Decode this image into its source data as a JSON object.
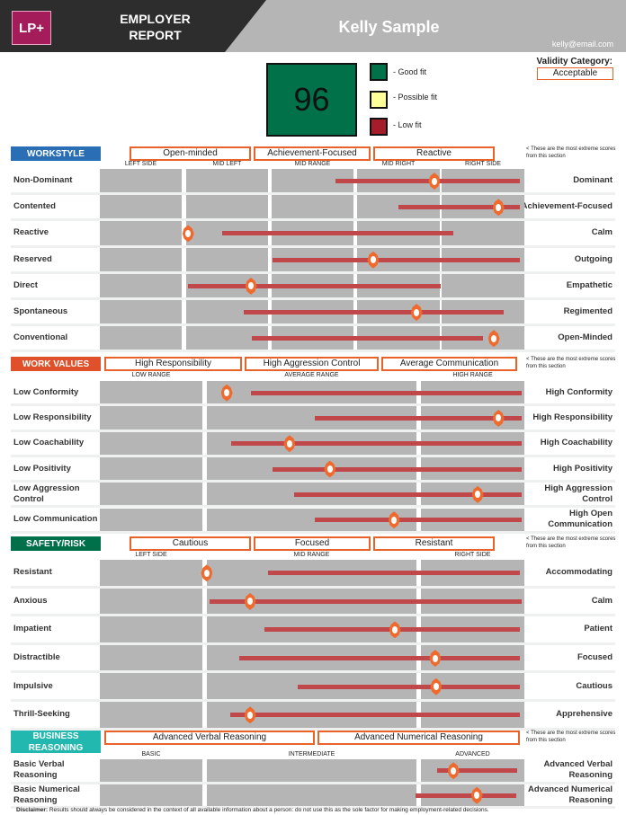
{
  "header": {
    "logo": "LP+",
    "title_line1": "EMPLOYER",
    "title_line2": "REPORT",
    "name": "Kelly Sample",
    "email": "kelly@email.com"
  },
  "score": {
    "value": "96",
    "color": "#007148"
  },
  "legend": [
    {
      "label": "- Good fit",
      "color": "#007148"
    },
    {
      "label": "- Possible fit",
      "color": "#ffff99"
    },
    {
      "label": "- Low fit",
      "color": "#a51c2a"
    }
  ],
  "validity": {
    "label": "Validity Category:",
    "value": "Acceptable"
  },
  "note": "< These are the most extreme scores from this section",
  "sections": [
    {
      "id": "workstyle",
      "title": "WORKSTYLE",
      "color": "#2a6fb6",
      "extremes": [
        "Open-minded",
        "Achievement-Focused",
        "Reactive"
      ],
      "columns": [
        "LEFT SIDE",
        "MID LEFT",
        "MID RANGE",
        "MID RIGHT",
        "RIGHT SIDE"
      ],
      "rows": [
        {
          "left": "Non-Dominant",
          "right": "Dominant",
          "range_pct": [
            55.5,
            98.9
          ],
          "score_pct": 78.8
        },
        {
          "left": "Contented",
          "right": "Achievement-Focused",
          "range_pct": [
            70.3,
            98.9
          ],
          "score_pct": 93.9
        },
        {
          "left": "Reactive",
          "right": "Calm",
          "range_pct": [
            28.8,
            83.3
          ],
          "score_pct": 20.8
        },
        {
          "left": "Reserved",
          "right": "Outgoing",
          "range_pct": [
            40.7,
            98.9
          ],
          "score_pct": 64.4
        },
        {
          "left": "Direct",
          "right": "Empathetic",
          "range_pct": [
            20.8,
            80.3
          ],
          "score_pct": 35.6
        },
        {
          "left": "Spontaneous",
          "right": "Regimented",
          "range_pct": [
            33.9,
            95.1
          ],
          "score_pct": 74.6
        },
        {
          "left": "Conventional",
          "right": "Open-Minded",
          "range_pct": [
            35.8,
            90.3
          ],
          "score_pct": 92.8
        }
      ]
    },
    {
      "id": "workvalues",
      "title": "WORK VALUES",
      "color": "#e0502a",
      "extremes": [
        "High Responsibility",
        "High Aggression Control",
        "Average Communication"
      ],
      "columns": [
        "LOW RANGE",
        "AVERAGE RANGE",
        "HIGH RANGE"
      ],
      "rows": [
        {
          "left": "Low Conformity",
          "right": "High Conformity",
          "range_pct": [
            35.6,
            99.4
          ],
          "score_pct": 29.9
        },
        {
          "left": "Low Responsibility",
          "right": "High Responsibility",
          "range_pct": [
            50.6,
            99.4
          ],
          "score_pct": 93.9
        },
        {
          "left": "Low Coachability",
          "right": "High Coachability",
          "range_pct": [
            30.9,
            99.4
          ],
          "score_pct": 44.7
        },
        {
          "left": "Low Positivity",
          "right": "High Positivity",
          "range_pct": [
            40.7,
            99.4
          ],
          "score_pct": 54.2
        },
        {
          "left": "Low Aggression Control",
          "right": "High Aggression Control",
          "range_pct": [
            45.8,
            99.4
          ],
          "score_pct": 89.0
        },
        {
          "left": "Low Communication",
          "right": "High Open Communication",
          "range_pct": [
            50.6,
            99.4
          ],
          "score_pct": 69.3
        }
      ]
    },
    {
      "id": "safety",
      "title": "SAFETY/RISK",
      "color": "#00704a",
      "extremes": [
        "Cautious",
        "Focused",
        "Resistant"
      ],
      "columns": [
        "LEFT SIDE",
        "MID RANGE",
        "RIGHT SIDE"
      ],
      "rows": [
        {
          "left": "Resistant",
          "right": "Accommodating",
          "range_pct": [
            39.6,
            98.9
          ],
          "score_pct": 25.2
        },
        {
          "left": "Anxious",
          "right": "Calm",
          "range_pct": [
            25.8,
            99.4
          ],
          "score_pct": 35.4
        },
        {
          "left": "Impatient",
          "right": "Patient",
          "range_pct": [
            38.8,
            98.9
          ],
          "score_pct": 69.5
        },
        {
          "left": "Distractible",
          "right": "Focused",
          "range_pct": [
            32.8,
            98.9
          ],
          "score_pct": 79.0
        },
        {
          "left": "Impulsive",
          "right": "Cautious",
          "range_pct": [
            46.6,
            98.9
          ],
          "score_pct": 79.2
        },
        {
          "left": "Thrill-Seeking",
          "right": "Apprehensive",
          "range_pct": [
            30.7,
            98.9
          ],
          "score_pct": 35.4
        }
      ]
    },
    {
      "id": "business",
      "title": "BUSINESS REASONING",
      "color": "#22b8b0",
      "extremes": [
        "Advanced Verbal Reasoning",
        "Advanced Numerical Reasoning"
      ],
      "columns": [
        "BASIC",
        "INTERMEDIATE",
        "ADVANCED"
      ],
      "rows": [
        {
          "left": "Basic Verbal Reasoning",
          "right": "Advanced Verbal Reasoning",
          "range_pct": [
            79.4,
            98.3
          ],
          "score_pct": 83.3
        },
        {
          "left": "Basic Numerical Reasoning",
          "right": "Advanced Numerical Reasoning",
          "range_pct": [
            74.4,
            98.1
          ],
          "score_pct": 88.8
        }
      ]
    }
  ],
  "disclaimer": {
    "label": "Disclaimer:",
    "text": " Results should always be considered in the context of all available information about a person: do not use this as the sole factor for making employment-related decisions."
  }
}
